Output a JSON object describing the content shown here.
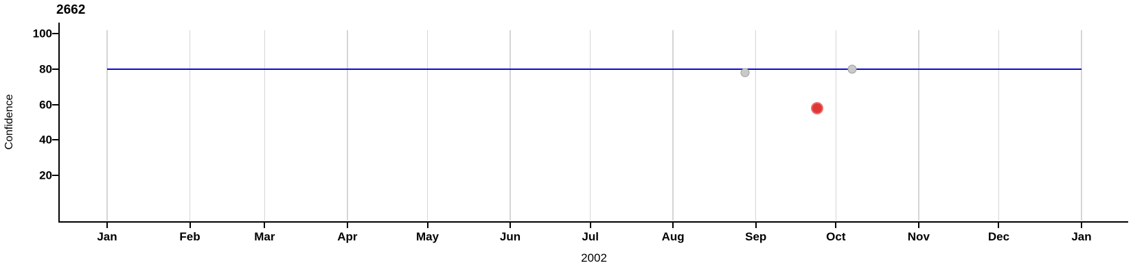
{
  "chart_data": {
    "type": "scatter",
    "title": "2662",
    "xlabel": "2002",
    "ylabel": "Confidence",
    "x_axis": {
      "unit": "date",
      "tick_labels": [
        "Jan",
        "Feb",
        "Mar",
        "Apr",
        "May",
        "Jun",
        "Jul",
        "Aug",
        "Sep",
        "Oct",
        "Nov",
        "Dec",
        "Jan"
      ],
      "tick_days_from_jan1_2002": [
        0,
        31,
        59,
        90,
        120,
        151,
        181,
        212,
        243,
        273,
        304,
        334,
        365
      ],
      "range_days": [
        -18,
        383
      ]
    },
    "y_axis": {
      "tick_labels": [
        100,
        80,
        60,
        40,
        20
      ],
      "ylim": [
        -6,
        106
      ]
    },
    "grid": "vertical-monthly-only",
    "legend": null,
    "reference_line": {
      "y": 80,
      "span_days": [
        0,
        365
      ],
      "color": "#0b0bce"
    },
    "points": [
      {
        "date_est": "2002-08-28",
        "day": 239,
        "y": 78,
        "fill": "#c9c9c9",
        "stroke": "#9e9e9e",
        "size": 13,
        "stroke_w": 1.5,
        "series": "gray"
      },
      {
        "date_est": "2002-09-24",
        "day": 266,
        "y": 58,
        "fill": "#df3636",
        "stroke": "#ee6f6f",
        "size": 18,
        "stroke_w": 2.5,
        "series": "red"
      },
      {
        "date_est": "2002-10-07",
        "day": 279,
        "y": 80,
        "fill": "#c9c9c9",
        "stroke": "#9e9e9e",
        "size": 13,
        "stroke_w": 1.5,
        "series": "gray"
      }
    ],
    "colors": {
      "axis": "#000000",
      "gridline": "#d5d5d5",
      "reference_line": "#0b0bce"
    }
  }
}
